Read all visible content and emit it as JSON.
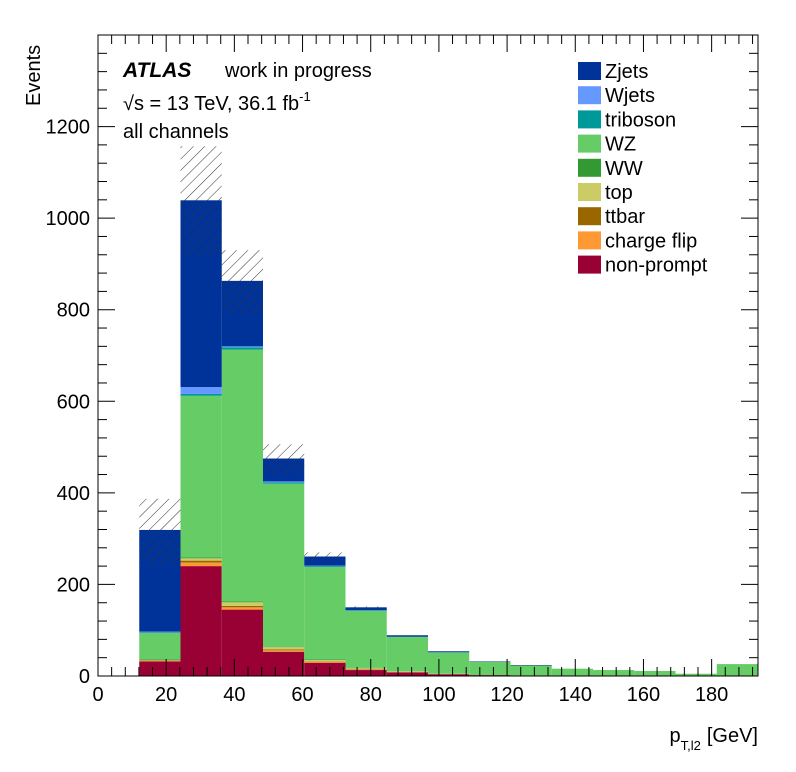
{
  "chart_data": {
    "type": "bar",
    "stacked": true,
    "bin_edges": [
      0,
      12.1,
      24.2,
      36.3,
      48.4,
      60.5,
      72.6,
      84.7,
      96.8,
      108.9,
      121,
      133.1,
      145.2,
      157.3,
      169.4,
      181.5,
      193.6
    ],
    "xlim": [
      0,
      193.6
    ],
    "ylim": [
      0,
      1400
    ],
    "xlabel_main": "p",
    "xlabel_sub": "T,l2",
    "xlabel_unit": "[GeV]",
    "ylabel": "Events",
    "x_ticks": [
      "0",
      "20",
      "40",
      "60",
      "80",
      "100",
      "120",
      "140",
      "160",
      "180"
    ],
    "x_tick_values": [
      0,
      20,
      40,
      60,
      80,
      100,
      120,
      140,
      160,
      180
    ],
    "y_ticks": [
      "0",
      "200",
      "400",
      "600",
      "800",
      "1000",
      "1200"
    ],
    "y_tick_values": [
      0,
      200,
      400,
      600,
      800,
      1000,
      1200
    ],
    "legend_position": "top-right",
    "series": [
      {
        "name": "non-prompt",
        "color": "#990033",
        "values": [
          0,
          32,
          240,
          145,
          53,
          29,
          13,
          8,
          4,
          2,
          1,
          1,
          1,
          1,
          1,
          1
        ]
      },
      {
        "name": "charge flip",
        "color": "#ff9933",
        "values": [
          0,
          1,
          8,
          5,
          3,
          2,
          1,
          1,
          0,
          0,
          0,
          0,
          0,
          0,
          0,
          0
        ]
      },
      {
        "name": "ttbar",
        "color": "#996600",
        "values": [
          0,
          1,
          4,
          3,
          2,
          1,
          1,
          0,
          0,
          0,
          0,
          0,
          0,
          0,
          0,
          0
        ]
      },
      {
        "name": "top",
        "color": "#cccc66",
        "values": [
          0,
          1,
          5,
          8,
          5,
          3,
          2,
          1,
          1,
          0,
          0,
          0,
          0,
          0,
          0,
          0
        ]
      },
      {
        "name": "WW",
        "color": "#339933",
        "values": [
          0,
          1,
          2,
          2,
          1,
          1,
          1,
          0,
          0,
          0,
          0,
          0,
          0,
          0,
          0,
          0
        ]
      },
      {
        "name": "WZ",
        "color": "#66cc66",
        "values": [
          0,
          58,
          353,
          550,
          356,
          202,
          124,
          75,
          46,
          29,
          22,
          15,
          12,
          10,
          4,
          25
        ]
      },
      {
        "name": "triboson",
        "color": "#009999",
        "values": [
          0,
          1,
          4,
          5,
          3,
          2,
          1,
          1,
          1,
          0,
          0,
          0,
          0,
          0,
          0,
          0
        ]
      },
      {
        "name": "Wjets",
        "color": "#6699ff",
        "values": [
          0,
          2,
          15,
          2,
          2,
          1,
          1,
          0,
          0,
          0,
          0,
          0,
          0,
          0,
          0,
          0
        ]
      },
      {
        "name": "Zjets",
        "color": "#003399",
        "values": [
          0,
          222,
          408,
          143,
          50,
          20,
          6,
          3,
          2,
          1,
          1,
          0,
          0,
          0,
          0,
          0
        ]
      }
    ],
    "uncertainty_bands": [
      {
        "bin": 1,
        "low": 245,
        "high": 387
      },
      {
        "bin": 2,
        "low": 918,
        "high": 1157
      },
      {
        "bin": 3,
        "low": 790,
        "high": 930
      },
      {
        "bin": 4,
        "low": 440,
        "high": 506
      },
      {
        "bin": 5,
        "low": 250,
        "high": 270
      },
      {
        "bin": 6,
        "low": 146,
        "high": 152
      }
    ]
  },
  "annotations": {
    "atlas": "ATLAS",
    "status": "work in progress",
    "energy_sqrt": "√s",
    "energy_text": " = 13 TeV, 36.1 fb",
    "energy_sup": "-1",
    "channel": "all channels"
  },
  "legend_order": [
    "Zjets",
    "Wjets",
    "triboson",
    "WZ",
    "WW",
    "top",
    "ttbar",
    "charge flip",
    "non-prompt"
  ]
}
